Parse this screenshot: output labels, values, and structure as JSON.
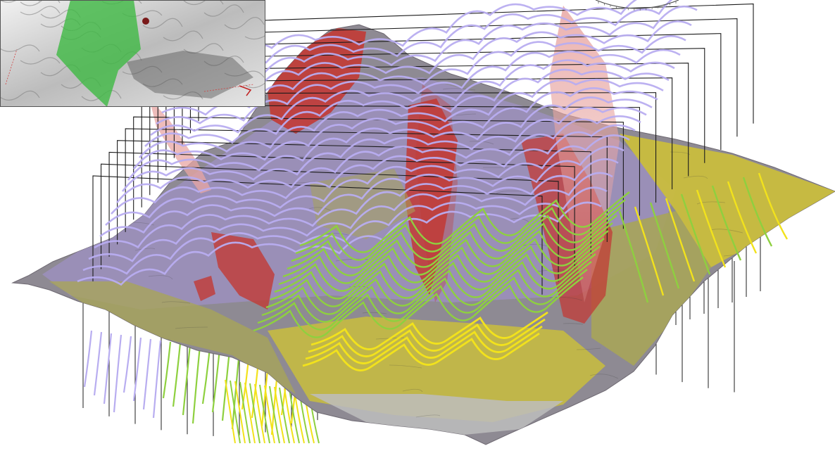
{
  "scene": {
    "colors": {
      "background": "#ffffff",
      "terrain_base": "#8e8a93",
      "terrain_shadow": "#6f6a73",
      "unit_purple": "#9b8fb8",
      "unit_red": "#c23a35",
      "unit_yellow": "#c9bd3d",
      "unit_olive": "#a7a45a",
      "unit_grey": "#bdbdbd",
      "contour_purple": "#b8adf0",
      "contour_green": "#8ed03f",
      "contour_yellow": "#f2e21c",
      "section_frame": "#1c1c1c",
      "fault_pink": "#e8a6a3",
      "inset_green": "#3fb944"
    },
    "inset_icons": [
      "hillshade-relief-icon",
      "green-surface-icon",
      "red-marker-icon"
    ],
    "compass_icon": "compass-rose-icon"
  }
}
